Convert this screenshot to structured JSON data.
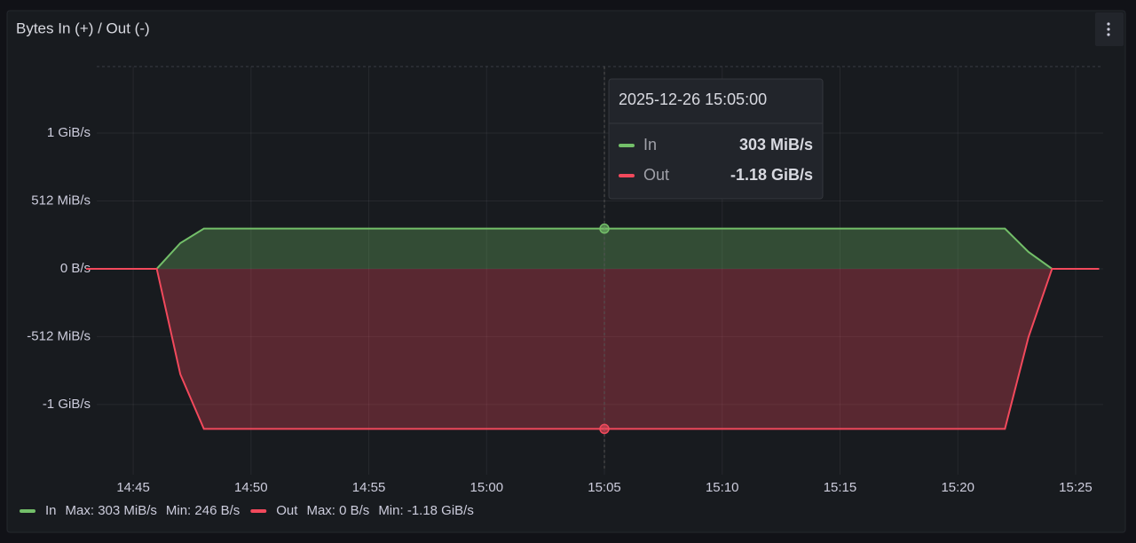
{
  "chart_data": {
    "type": "area",
    "title": "Bytes In (+) / Out (-)",
    "x": [
      "14:43",
      "14:46",
      "14:47",
      "14:48",
      "15:05",
      "15:22",
      "15:23",
      "15:24",
      "15:26"
    ],
    "series": [
      {
        "name": "In",
        "color": "#73bf69",
        "values": [
          0,
          0,
          194,
          303,
          303,
          303,
          127,
          0,
          0
        ],
        "value_labels": [
          null,
          null,
          null,
          null,
          "303 MiB/s",
          null,
          null,
          null,
          null
        ],
        "stats": [
          "Max: 303 MiB/s",
          "Min: 246 B/s"
        ]
      },
      {
        "name": "Out",
        "color": "#f2495c",
        "values": [
          0,
          0,
          -796,
          -1208,
          -1208,
          -1208,
          -515,
          0,
          0
        ],
        "value_labels": [
          null,
          null,
          null,
          null,
          "-1.18 GiB/s",
          null,
          null,
          null,
          null
        ],
        "stats": [
          "Max: 0 B/s",
          "Min: -1.18 GiB/s"
        ]
      }
    ],
    "xlim": [
      "14:43",
      "15:26"
    ],
    "xticks": [
      "14:45",
      "14:50",
      "14:55",
      "15:00",
      "15:05",
      "15:10",
      "15:15",
      "15:20",
      "15:25"
    ],
    "ylim": [
      -1520,
      1526
    ],
    "yticks": [
      {
        "value": -1024,
        "label": "-1 GiB/s"
      },
      {
        "value": -512,
        "label": "-512 MiB/s"
      },
      {
        "value": 0,
        "label": "0 B/s"
      },
      {
        "value": 512,
        "label": "512 MiB/s"
      },
      {
        "value": 1024,
        "label": "1 GiB/s"
      }
    ],
    "grid": true,
    "tooltip": {
      "title": "2025-12-26 15:05:00",
      "index": 4
    }
  }
}
